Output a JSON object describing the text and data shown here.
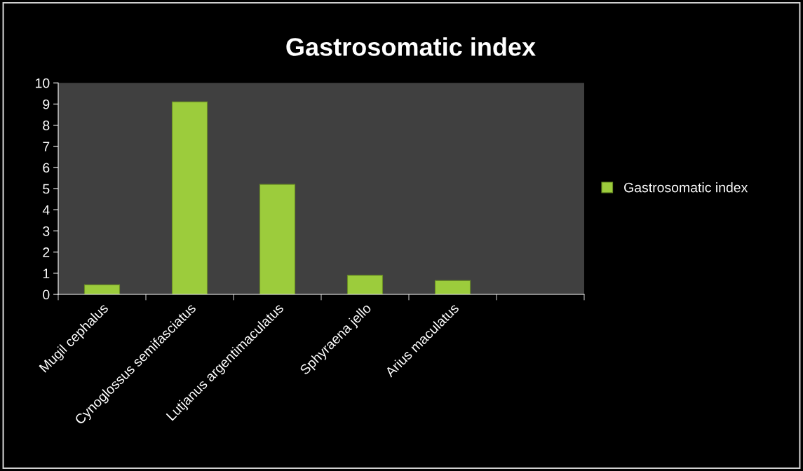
{
  "chart_data": {
    "type": "bar",
    "title": "Gastrosomatic index",
    "categories": [
      "Mugil cephalus",
      "Cynoglossus semifasciatus",
      "Lutjanus argentimaculatus",
      "Sphyraena jello",
      "Arius maculatus",
      null
    ],
    "series": [
      {
        "name": "Gastrosomatic index",
        "color": "#9ccc3c",
        "values": [
          0.45,
          9.1,
          5.2,
          0.9,
          0.65,
          null
        ]
      }
    ],
    "ylim": [
      0,
      10
    ],
    "yticks": [
      0,
      1,
      2,
      3,
      4,
      5,
      6,
      7,
      8,
      9,
      10
    ],
    "grid": false,
    "legend": "right"
  }
}
